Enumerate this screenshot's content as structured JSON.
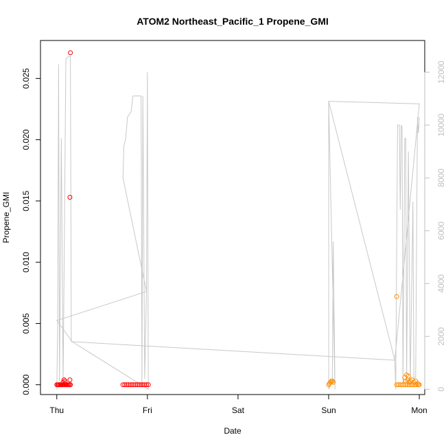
{
  "chart_data": {
    "type": "scatter",
    "title": "ATOM2 Northeast_Pacific_1 Propene_GMI",
    "xlabel": "Date",
    "ylabel": "Propene_GMI",
    "x_ticks": [
      "Thu",
      "Fri",
      "Sat",
      "Sun",
      "Mon"
    ],
    "x_tick_days": [
      0,
      1,
      2,
      3,
      4
    ],
    "xlim_days": [
      -0.18,
      4.06
    ],
    "ylim": [
      -0.0008,
      0.0281
    ],
    "y_ticks": [
      "0.000",
      "0.005",
      "0.010",
      "0.015",
      "0.020",
      "0.025"
    ],
    "y_tick_values": [
      0,
      0.005,
      0.01,
      0.015,
      0.02,
      0.025
    ],
    "y2lim": [
      -200,
      13200
    ],
    "y2_ticks": [
      "0",
      "2000",
      "4000",
      "6000",
      "8000",
      "10000",
      "12000"
    ],
    "y2_tick_values": [
      0,
      2000,
      4000,
      6000,
      8000,
      10000,
      12000
    ],
    "grid": false,
    "legend": "none",
    "colors": {
      "series_red": "#ff0000",
      "series_orange": "#ff8c00",
      "altitude": "#c8c8c8",
      "axis": "#000000",
      "right_axis": "#bebebe"
    },
    "series": [
      {
        "color": "#ff0000",
        "points": [
          [
            0.0,
            0.0
          ],
          [
            0.01,
            0.0
          ],
          [
            0.02,
            0.0
          ],
          [
            0.03,
            0.0
          ],
          [
            0.04,
            0.0
          ],
          [
            0.05,
            0.0
          ],
          [
            0.06,
            0.0
          ],
          [
            0.07,
            0.0
          ],
          [
            0.08,
            0.0
          ],
          [
            0.09,
            0.0
          ],
          [
            0.1,
            0.0
          ],
          [
            0.11,
            0.0
          ],
          [
            0.12,
            0.0
          ],
          [
            0.13,
            0.0
          ],
          [
            0.14,
            0.0
          ],
          [
            0.15,
            0.0
          ],
          [
            0.08,
            0.0004
          ],
          [
            0.09,
            0.0003
          ],
          [
            0.07,
            0.0002
          ],
          [
            0.145,
            0.0004
          ],
          [
            0.145,
            0.0153
          ],
          [
            0.15,
            0.0271
          ],
          [
            0.73,
            0.0
          ],
          [
            0.75,
            0.0
          ],
          [
            0.77,
            0.0
          ],
          [
            0.79,
            0.0
          ],
          [
            0.81,
            0.0
          ],
          [
            0.83,
            0.0
          ],
          [
            0.85,
            0.0
          ],
          [
            0.87,
            0.0
          ],
          [
            0.89,
            0.0
          ],
          [
            0.91,
            0.0
          ],
          [
            0.93,
            0.0
          ],
          [
            0.95,
            0.0
          ],
          [
            0.97,
            0.0
          ],
          [
            0.99,
            0.0
          ],
          [
            1.01,
            0.0
          ]
        ]
      },
      {
        "color": "#ff8c00",
        "points": [
          [
            3.0,
            0.0
          ],
          [
            3.01,
            0.0001
          ],
          [
            3.02,
            0.0002
          ],
          [
            3.03,
            0.0003
          ],
          [
            3.04,
            0.0003
          ],
          [
            3.05,
            0.0002
          ],
          [
            3.75,
            0.0
          ],
          [
            3.77,
            0.0
          ],
          [
            3.79,
            0.0
          ],
          [
            3.81,
            0.0
          ],
          [
            3.83,
            0.0
          ],
          [
            3.85,
            0.0
          ],
          [
            3.87,
            0.0
          ],
          [
            3.89,
            0.0
          ],
          [
            3.91,
            0.0
          ],
          [
            3.93,
            0.0
          ],
          [
            3.95,
            0.0
          ],
          [
            3.97,
            0.0
          ],
          [
            3.99,
            0.0
          ],
          [
            4.0,
            0.0
          ],
          [
            3.84,
            0.0006
          ],
          [
            3.86,
            0.0008
          ],
          [
            3.88,
            0.0007
          ],
          [
            3.87,
            0.0004
          ],
          [
            3.9,
            0.0003
          ],
          [
            3.92,
            0.0004
          ],
          [
            3.94,
            0.0002
          ],
          [
            3.96,
            0.0003
          ],
          [
            3.98,
            0.0001
          ],
          [
            3.89,
            0.0002
          ],
          [
            3.85,
            0.0003
          ],
          [
            3.75,
            0.0072
          ]
        ]
      }
    ],
    "altitude_line": {
      "color": "#c8c8c8",
      "points": [
        [
          0.0,
          0
        ],
        [
          0.01,
          2600
        ],
        [
          0.02,
          12300
        ],
        [
          0.03,
          300
        ],
        [
          0.05,
          9500
        ],
        [
          0.07,
          200
        ],
        [
          0.1,
          12500
        ],
        [
          0.13,
          12600
        ],
        [
          0.15,
          12600
        ],
        [
          0.16,
          1800
        ],
        [
          0.17,
          1800
        ],
        [
          0.0,
          2600
        ],
        [
          0.99,
          3700
        ],
        [
          0.73,
          8000
        ],
        [
          0.74,
          9200
        ],
        [
          0.76,
          9500
        ],
        [
          0.78,
          10300
        ],
        [
          0.82,
          10500
        ],
        [
          0.84,
          11100
        ],
        [
          0.9,
          11100
        ],
        [
          0.93,
          11100
        ],
        [
          0.94,
          200
        ],
        [
          0.95,
          11100
        ],
        [
          0.97,
          400
        ],
        [
          0.99,
          3700
        ],
        [
          1.0,
          12000
        ],
        [
          1.01,
          0
        ],
        [
          0.17,
          1800
        ],
        [
          3.72,
          1100
        ],
        [
          3.73,
          1100
        ],
        [
          3.0,
          10900
        ],
        [
          3.0,
          0
        ],
        [
          3.04,
          300
        ],
        [
          3.05,
          5600
        ],
        [
          3.06,
          2900
        ],
        [
          3.07,
          0
        ],
        [
          3.0,
          10900
        ],
        [
          4.0,
          10800
        ],
        [
          3.73,
          1100
        ],
        [
          3.74,
          0
        ],
        [
          3.76,
          10000
        ],
        [
          3.78,
          10000
        ],
        [
          3.79,
          6800
        ],
        [
          3.8,
          10000
        ],
        [
          3.81,
          9900
        ],
        [
          3.82,
          200
        ],
        [
          3.84,
          9500
        ],
        [
          3.85,
          9500
        ],
        [
          3.86,
          300
        ],
        [
          3.88,
          9000
        ],
        [
          3.9,
          200
        ],
        [
          3.93,
          7100
        ],
        [
          3.94,
          300
        ],
        [
          3.96,
          500
        ],
        [
          3.98,
          10300
        ],
        [
          3.99,
          9700
        ],
        [
          4.0,
          10300
        ]
      ]
    }
  }
}
